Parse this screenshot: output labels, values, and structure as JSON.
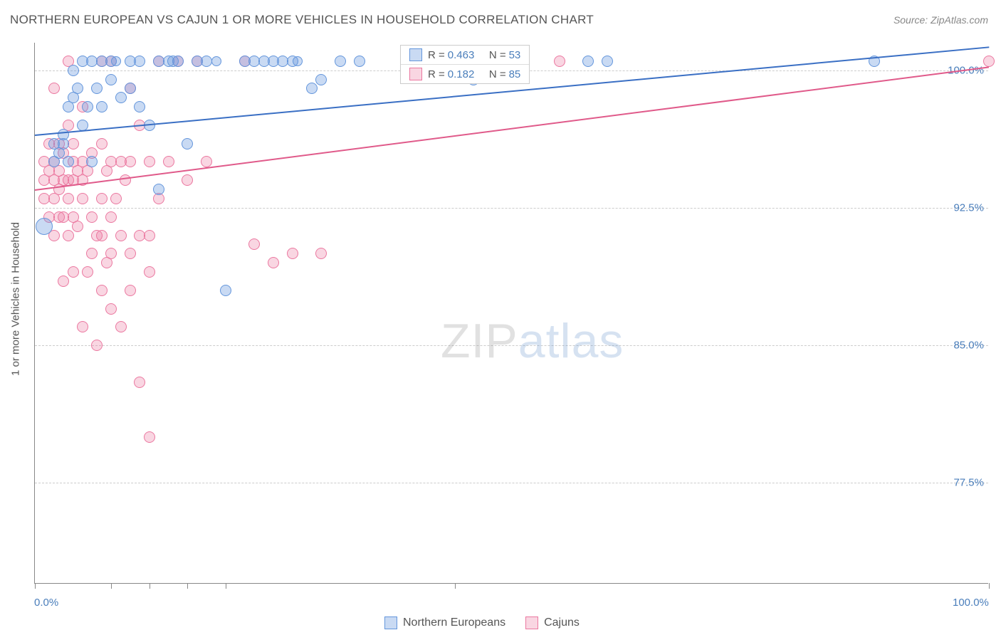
{
  "chart": {
    "type": "scatter",
    "title": "NORTHERN EUROPEAN VS CAJUN 1 OR MORE VEHICLES IN HOUSEHOLD CORRELATION CHART",
    "source_label": "Source: ZipAtlas.com",
    "y_axis_label": "1 or more Vehicles in Household",
    "background_color": "#ffffff",
    "grid_color": "#cccccc",
    "axis_color": "#888888",
    "tick_label_color": "#4a7ebb",
    "axis_label_color": "#555555",
    "title_color": "#555555",
    "title_fontsize": 17,
    "label_fontsize": 15,
    "xlim": [
      0,
      100
    ],
    "ylim": [
      72,
      101.5
    ],
    "y_ticks": [
      77.5,
      85.0,
      92.5,
      100.0
    ],
    "y_tick_labels": [
      "77.5%",
      "85.0%",
      "92.5%",
      "100.0%"
    ],
    "x_ticks": [
      0,
      8,
      12,
      16,
      20,
      44,
      100
    ],
    "x_tick_labels_shown": {
      "0": "0.0%",
      "100": "100.0%"
    },
    "watermark": {
      "text_a": "ZIP",
      "text_b": "atlas",
      "fontsize": 68,
      "color_a": "rgba(136,136,136,0.25)",
      "color_b": "rgba(90,140,200,0.25)"
    },
    "series": [
      {
        "name": "Northern Europeans",
        "color_fill": "rgba(100,150,220,0.35)",
        "color_stroke": "#6496dc",
        "R": "0.463",
        "N": "53",
        "trend": {
          "x1": 0,
          "y1": 96.5,
          "x2": 100,
          "y2": 101.3,
          "color": "#3a6fc4",
          "width": 2
        },
        "points": [
          {
            "x": 1,
            "y": 91.5,
            "r": 12
          },
          {
            "x": 2,
            "y": 96,
            "r": 8
          },
          {
            "x": 2,
            "y": 95,
            "r": 8
          },
          {
            "x": 2.5,
            "y": 95.5,
            "r": 8
          },
          {
            "x": 3,
            "y": 96.5,
            "r": 8
          },
          {
            "x": 3,
            "y": 96,
            "r": 8
          },
          {
            "x": 3.5,
            "y": 95,
            "r": 8
          },
          {
            "x": 3.5,
            "y": 98,
            "r": 8
          },
          {
            "x": 4,
            "y": 98.5,
            "r": 8
          },
          {
            "x": 4,
            "y": 100,
            "r": 8
          },
          {
            "x": 4.5,
            "y": 99,
            "r": 8
          },
          {
            "x": 5,
            "y": 100.5,
            "r": 8
          },
          {
            "x": 5,
            "y": 97,
            "r": 8
          },
          {
            "x": 5.5,
            "y": 98,
            "r": 8
          },
          {
            "x": 6,
            "y": 100.5,
            "r": 8
          },
          {
            "x": 6,
            "y": 95,
            "r": 8
          },
          {
            "x": 6.5,
            "y": 99,
            "r": 8
          },
          {
            "x": 7,
            "y": 100.5,
            "r": 8
          },
          {
            "x": 7,
            "y": 98,
            "r": 8
          },
          {
            "x": 8,
            "y": 100.5,
            "r": 8
          },
          {
            "x": 8,
            "y": 99.5,
            "r": 8
          },
          {
            "x": 8.5,
            "y": 100.5,
            "r": 7
          },
          {
            "x": 9,
            "y": 98.5,
            "r": 8
          },
          {
            "x": 10,
            "y": 99,
            "r": 8
          },
          {
            "x": 10,
            "y": 100.5,
            "r": 8
          },
          {
            "x": 11,
            "y": 98,
            "r": 8
          },
          {
            "x": 11,
            "y": 100.5,
            "r": 8
          },
          {
            "x": 12,
            "y": 97,
            "r": 8
          },
          {
            "x": 13,
            "y": 100.5,
            "r": 8
          },
          {
            "x": 13,
            "y": 93.5,
            "r": 8
          },
          {
            "x": 14,
            "y": 100.5,
            "r": 8
          },
          {
            "x": 14.5,
            "y": 100.5,
            "r": 8
          },
          {
            "x": 15,
            "y": 100.5,
            "r": 8
          },
          {
            "x": 16,
            "y": 96,
            "r": 8
          },
          {
            "x": 17,
            "y": 100.5,
            "r": 8
          },
          {
            "x": 18,
            "y": 100.5,
            "r": 8
          },
          {
            "x": 19,
            "y": 100.5,
            "r": 7
          },
          {
            "x": 20,
            "y": 88,
            "r": 8
          },
          {
            "x": 22,
            "y": 100.5,
            "r": 8
          },
          {
            "x": 23,
            "y": 100.5,
            "r": 8
          },
          {
            "x": 24,
            "y": 100.5,
            "r": 8
          },
          {
            "x": 25,
            "y": 100.5,
            "r": 8
          },
          {
            "x": 26,
            "y": 100.5,
            "r": 8
          },
          {
            "x": 27,
            "y": 100.5,
            "r": 8
          },
          {
            "x": 27.5,
            "y": 100.5,
            "r": 7
          },
          {
            "x": 29,
            "y": 99,
            "r": 8
          },
          {
            "x": 30,
            "y": 99.5,
            "r": 8
          },
          {
            "x": 32,
            "y": 100.5,
            "r": 8
          },
          {
            "x": 34,
            "y": 100.5,
            "r": 8
          },
          {
            "x": 46,
            "y": 99.5,
            "r": 8
          },
          {
            "x": 58,
            "y": 100.5,
            "r": 8
          },
          {
            "x": 60,
            "y": 100.5,
            "r": 8
          },
          {
            "x": 88,
            "y": 100.5,
            "r": 8
          }
        ]
      },
      {
        "name": "Cajuns",
        "color_fill": "rgba(235,120,160,0.30)",
        "color_stroke": "#eb78a0",
        "R": "0.182",
        "N": "85",
        "trend": {
          "x1": 0,
          "y1": 93.5,
          "x2": 100,
          "y2": 100.2,
          "color": "#e05a8a",
          "width": 2
        },
        "points": [
          {
            "x": 1,
            "y": 94,
            "r": 8
          },
          {
            "x": 1,
            "y": 95,
            "r": 8
          },
          {
            "x": 1,
            "y": 93,
            "r": 8
          },
          {
            "x": 1.5,
            "y": 96,
            "r": 8
          },
          {
            "x": 1.5,
            "y": 94.5,
            "r": 8
          },
          {
            "x": 1.5,
            "y": 92,
            "r": 8
          },
          {
            "x": 2,
            "y": 95,
            "r": 8
          },
          {
            "x": 2,
            "y": 94,
            "r": 8
          },
          {
            "x": 2,
            "y": 93,
            "r": 8
          },
          {
            "x": 2,
            "y": 91,
            "r": 8
          },
          {
            "x": 2,
            "y": 99,
            "r": 8
          },
          {
            "x": 2.5,
            "y": 94.5,
            "r": 8
          },
          {
            "x": 2.5,
            "y": 96,
            "r": 8
          },
          {
            "x": 2.5,
            "y": 93.5,
            "r": 8
          },
          {
            "x": 2.5,
            "y": 92,
            "r": 8
          },
          {
            "x": 3,
            "y": 95.5,
            "r": 8
          },
          {
            "x": 3,
            "y": 92,
            "r": 8
          },
          {
            "x": 3,
            "y": 94,
            "r": 8
          },
          {
            "x": 3,
            "y": 88.5,
            "r": 8
          },
          {
            "x": 3.5,
            "y": 94,
            "r": 8
          },
          {
            "x": 3.5,
            "y": 93,
            "r": 8
          },
          {
            "x": 3.5,
            "y": 91,
            "r": 8
          },
          {
            "x": 3.5,
            "y": 97,
            "r": 8
          },
          {
            "x": 3.5,
            "y": 100.5,
            "r": 8
          },
          {
            "x": 4,
            "y": 96,
            "r": 8
          },
          {
            "x": 4,
            "y": 95,
            "r": 8
          },
          {
            "x": 4,
            "y": 94,
            "r": 8
          },
          {
            "x": 4,
            "y": 92,
            "r": 8
          },
          {
            "x": 4,
            "y": 89,
            "r": 8
          },
          {
            "x": 4.5,
            "y": 94.5,
            "r": 8
          },
          {
            "x": 4.5,
            "y": 91.5,
            "r": 8
          },
          {
            "x": 5,
            "y": 98,
            "r": 8
          },
          {
            "x": 5,
            "y": 95,
            "r": 8
          },
          {
            "x": 5,
            "y": 94,
            "r": 8
          },
          {
            "x": 5,
            "y": 93,
            "r": 8
          },
          {
            "x": 5,
            "y": 86,
            "r": 8
          },
          {
            "x": 5.5,
            "y": 94.5,
            "r": 8
          },
          {
            "x": 5.5,
            "y": 89,
            "r": 8
          },
          {
            "x": 6,
            "y": 95.5,
            "r": 8
          },
          {
            "x": 6,
            "y": 92,
            "r": 8
          },
          {
            "x": 6,
            "y": 90,
            "r": 8
          },
          {
            "x": 6.5,
            "y": 91,
            "r": 8
          },
          {
            "x": 6.5,
            "y": 85,
            "r": 8
          },
          {
            "x": 7,
            "y": 96,
            "r": 8
          },
          {
            "x": 7,
            "y": 93,
            "r": 8
          },
          {
            "x": 7,
            "y": 91,
            "r": 8
          },
          {
            "x": 7,
            "y": 100.5,
            "r": 8
          },
          {
            "x": 7,
            "y": 88,
            "r": 8
          },
          {
            "x": 7.5,
            "y": 94.5,
            "r": 8
          },
          {
            "x": 7.5,
            "y": 89.5,
            "r": 8
          },
          {
            "x": 8,
            "y": 95,
            "r": 8
          },
          {
            "x": 8,
            "y": 92,
            "r": 8
          },
          {
            "x": 8,
            "y": 90,
            "r": 8
          },
          {
            "x": 8,
            "y": 87,
            "r": 8
          },
          {
            "x": 8.5,
            "y": 93,
            "r": 8
          },
          {
            "x": 8,
            "y": 100.5,
            "r": 8
          },
          {
            "x": 9,
            "y": 95,
            "r": 8
          },
          {
            "x": 9,
            "y": 91,
            "r": 8
          },
          {
            "x": 9,
            "y": 86,
            "r": 8
          },
          {
            "x": 9.5,
            "y": 94,
            "r": 8
          },
          {
            "x": 10,
            "y": 99,
            "r": 8
          },
          {
            "x": 10,
            "y": 95,
            "r": 8
          },
          {
            "x": 10,
            "y": 90,
            "r": 8
          },
          {
            "x": 10,
            "y": 88,
            "r": 8
          },
          {
            "x": 11,
            "y": 97,
            "r": 8
          },
          {
            "x": 11,
            "y": 91,
            "r": 8
          },
          {
            "x": 11,
            "y": 83,
            "r": 8
          },
          {
            "x": 12,
            "y": 95,
            "r": 8
          },
          {
            "x": 12,
            "y": 91,
            "r": 8
          },
          {
            "x": 12,
            "y": 89,
            "r": 8
          },
          {
            "x": 12,
            "y": 80,
            "r": 8
          },
          {
            "x": 13,
            "y": 93,
            "r": 8
          },
          {
            "x": 13,
            "y": 100.5,
            "r": 8
          },
          {
            "x": 14,
            "y": 95,
            "r": 8
          },
          {
            "x": 15,
            "y": 100.5,
            "r": 8
          },
          {
            "x": 16,
            "y": 94,
            "r": 8
          },
          {
            "x": 17,
            "y": 100.5,
            "r": 8
          },
          {
            "x": 18,
            "y": 95,
            "r": 8
          },
          {
            "x": 22,
            "y": 100.5,
            "r": 8
          },
          {
            "x": 23,
            "y": 90.5,
            "r": 8
          },
          {
            "x": 25,
            "y": 89.5,
            "r": 8
          },
          {
            "x": 27,
            "y": 90,
            "r": 8
          },
          {
            "x": 30,
            "y": 90,
            "r": 8
          },
          {
            "x": 55,
            "y": 100.5,
            "r": 8
          },
          {
            "x": 100,
            "y": 100.5,
            "r": 8
          }
        ]
      }
    ],
    "top_legend": {
      "rows": [
        {
          "swatch_fill": "rgba(100,150,220,0.35)",
          "swatch_stroke": "#6496dc",
          "label_r": "R =",
          "val_r": "0.463",
          "label_n": "N =",
          "val_n": "53"
        },
        {
          "swatch_fill": "rgba(235,120,160,0.30)",
          "swatch_stroke": "#eb78a0",
          "label_r": "R =",
          "val_r": " 0.182",
          "label_n": "N =",
          "val_n": "85"
        }
      ]
    },
    "bottom_legend": {
      "items": [
        {
          "swatch_fill": "rgba(100,150,220,0.35)",
          "swatch_stroke": "#6496dc",
          "label": "Northern Europeans"
        },
        {
          "swatch_fill": "rgba(235,120,160,0.30)",
          "swatch_stroke": "#eb78a0",
          "label": "Cajuns"
        }
      ]
    }
  }
}
